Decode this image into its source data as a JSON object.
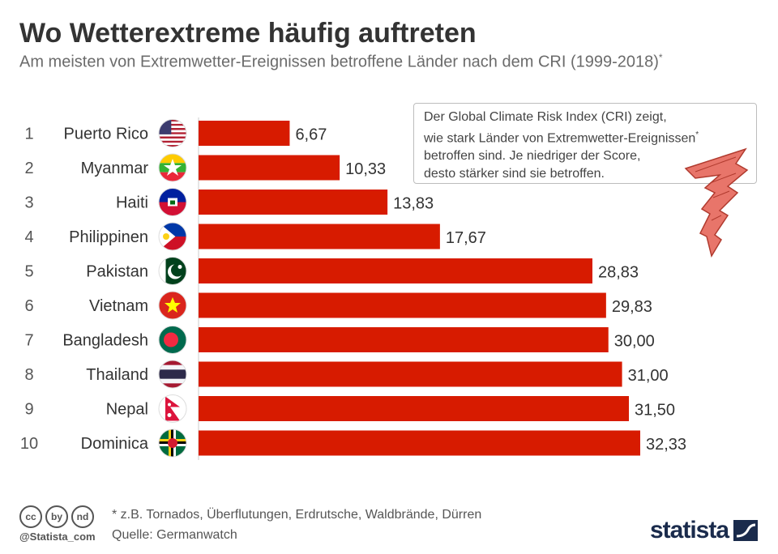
{
  "title": "Wo Wetterextreme häufig auftreten",
  "subtitle": "Am meisten von Extremwetter-Ereignissen betroffene Länder nach dem CRI (1999-2018)",
  "subtitle_mark": "*",
  "infobox": {
    "line1": "Der Global Climate Risk Index (CRI) zeigt,",
    "line2": "wie stark Länder von Extremwetter-Ereignissen",
    "line2_mark": "*",
    "line3": "betroffen sind. Je niedriger der Score,",
    "line4": "desto stärker sind sie betroffen."
  },
  "footer": {
    "footnote": "* z.B. Tornados, Überflutungen, Erdrutsche, Waldbrände, Dürren",
    "source": "Quelle: Germanwatch",
    "credit": "@Statista_com",
    "brand": "statista",
    "license_icons": [
      "cc",
      "by",
      "nd"
    ]
  },
  "colors": {
    "bar": "#d71b00",
    "tornado": "#e8756a"
  },
  "chart_data": {
    "type": "bar",
    "orientation": "horizontal",
    "categories": [
      "Puerto Rico",
      "Myanmar",
      "Haiti",
      "Philippinen",
      "Pakistan",
      "Vietnam",
      "Bangladesh",
      "Thailand",
      "Nepal",
      "Dominica"
    ],
    "ranks": [
      "1",
      "2",
      "3",
      "4",
      "5",
      "6",
      "7",
      "8",
      "9",
      "10"
    ],
    "values": [
      6.67,
      10.33,
      13.83,
      17.67,
      28.83,
      29.83,
      30.0,
      31.0,
      31.5,
      32.33
    ],
    "value_labels": [
      "6,67",
      "10,33",
      "13,83",
      "17,67",
      "28,83",
      "29,83",
      "30,00",
      "31,00",
      "31,50",
      "32,33"
    ],
    "flags": [
      "usa-flag",
      "myanmar-flag",
      "haiti-flag",
      "philippines-flag",
      "pakistan-flag",
      "vietnam-flag",
      "bangladesh-flag",
      "thailand-flag",
      "nepal-flag",
      "dominica-flag"
    ],
    "xlim": [
      0,
      33
    ],
    "grid": false,
    "legend": "none"
  }
}
